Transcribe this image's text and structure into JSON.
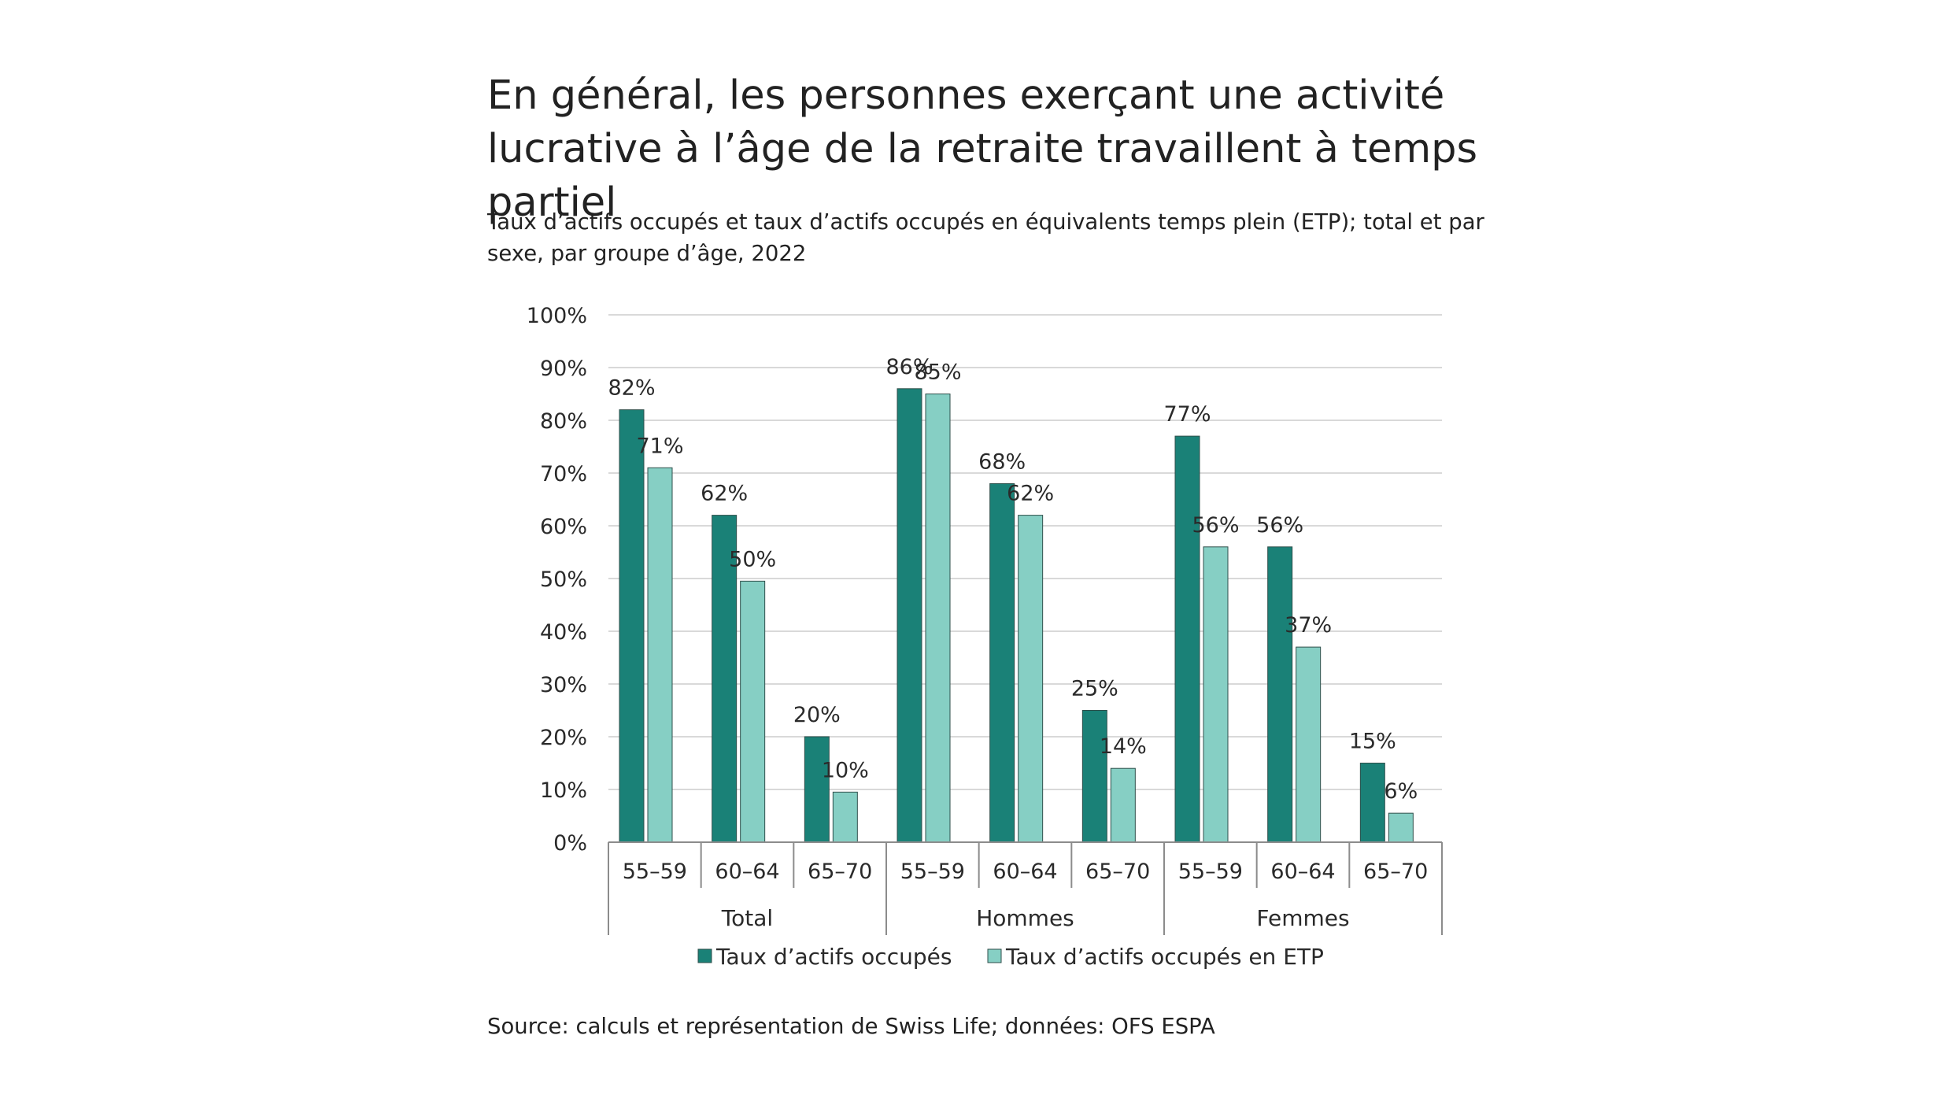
{
  "title": "En général, les personnes exerçant une activité lucrative à l’âge de la retraite travaillent à temps partiel",
  "subtitle": "Taux d’actifs occupés et taux d’actifs occupés en équivalents temps plein (ETP); total et par sexe, par groupe d’âge, 2022",
  "source": "Source: calculs et représentation de Swiss Life; données: OFS ESPA",
  "colors": {
    "employed": "#1a8177",
    "fte": "#86cfc4",
    "grid": "#d9d9d9",
    "axis": "#8c8c8c"
  },
  "chart_data": {
    "type": "bar",
    "ylim": [
      0,
      100
    ],
    "yticks": [
      0,
      10,
      20,
      30,
      40,
      50,
      60,
      70,
      80,
      90,
      100
    ],
    "ytick_labels": [
      "0%",
      "10%",
      "20%",
      "30%",
      "40%",
      "50%",
      "60%",
      "70%",
      "80%",
      "90%",
      "100%"
    ],
    "grid": true,
    "legend_position": "bottom",
    "groups": [
      {
        "label": "Total",
        "categories": [
          "55–59",
          "60–64",
          "65–70"
        ]
      },
      {
        "label": "Hommes",
        "categories": [
          "55–59",
          "60–64",
          "65–70"
        ]
      },
      {
        "label": "Femmes",
        "categories": [
          "55–59",
          "60–64",
          "65–70"
        ]
      }
    ],
    "series": [
      {
        "name": "Taux d’actifs occupés",
        "values": [
          82,
          62,
          20,
          86,
          68,
          25,
          77,
          56,
          15
        ],
        "labels": [
          "82%",
          "62%",
          "20%",
          "86%",
          "68%",
          "25%",
          "77%",
          "56%",
          "15%"
        ]
      },
      {
        "name": "Taux d’actifs occupés en ETP",
        "values": [
          71,
          49.5,
          9.5,
          85,
          62,
          14,
          56,
          37,
          5.5
        ],
        "labels": [
          "71%",
          "50%",
          "10%",
          "85%",
          "62%",
          "14%",
          "56%",
          "37%",
          "6%"
        ]
      }
    ]
  }
}
